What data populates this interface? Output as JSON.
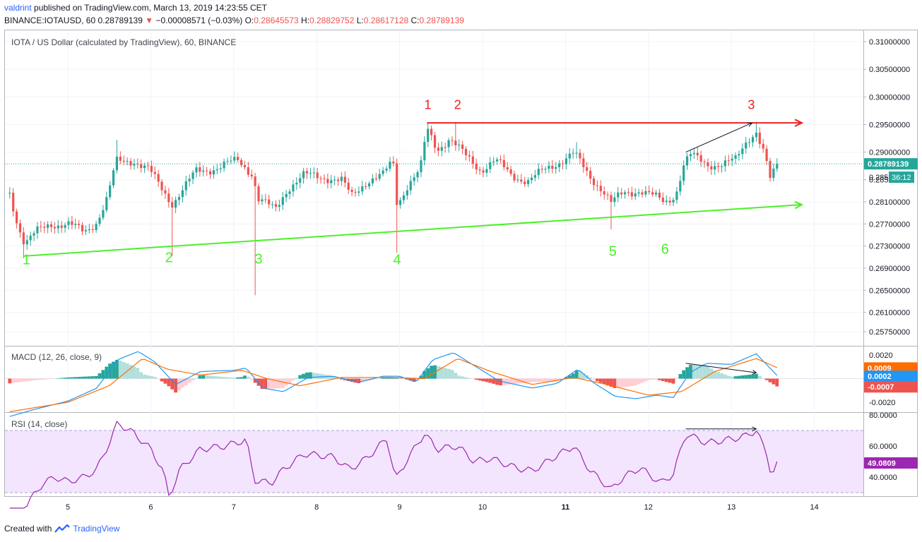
{
  "header": {
    "author": "valdrint",
    "published": "published on TradingView.com, March 13, 2019 14:23:55 CET",
    "symbol": "BINANCE:IOTAUSD, 60",
    "last": "0.28789139",
    "change_arrow": "▼",
    "change": "−0.00008571 (−0.03%)",
    "o_label": "O:",
    "o": "0.28645573",
    "h_label": "H:",
    "h": "0.28829752",
    "l_label": "L:",
    "l": "0.28617128",
    "c_label": "C:",
    "c": "0.28789139"
  },
  "panes": {
    "price_title": "IOTA / US Dollar (calculated by TradingView), 60, BINANCE",
    "macd_title": "MACD (12, 26, close, 9)",
    "rsi_title": "RSI (14, close)"
  },
  "colors": {
    "up": "#26a69a",
    "down": "#ef5350",
    "support": "#4cef2a",
    "resistance": "#ef2020",
    "macd": "#2196f3",
    "signal": "#ff6d00",
    "rsi": "#9c27b0",
    "rsi_band": "#f3e5fd",
    "last_price_bg": "#26a69a",
    "macd_bg": "#2196f3",
    "signal_bg": "#ff6d00",
    "hist_bg": "#ef5350",
    "rsi_bg": "#9c27b0"
  },
  "chart_data": [
    {
      "type": "candlestick",
      "title": "IOTA / US Dollar (calculated by TradingView), 60, BINANCE",
      "x_ticks": [
        "5",
        "6",
        "7",
        "8",
        "9",
        "10",
        "11",
        "12",
        "13",
        "14"
      ],
      "y_ticks": [
        "0.31000000",
        "0.30500000",
        "0.30000000",
        "0.29500000",
        "0.29000000",
        "0.28500000",
        "0.28100000",
        "0.27700000",
        "0.27300000",
        "0.26900000",
        "0.26500000",
        "0.26100000",
        "0.25750000"
      ],
      "last_price_label": "0.28789139",
      "countdown_label": "36:12",
      "countdown_partial_tick": "0.285",
      "anchors": [
        {
          "x": 4.3,
          "y": 0.2825
        },
        {
          "x": 4.38,
          "y": 0.2778
        },
        {
          "x": 4.48,
          "y": 0.2735
        },
        {
          "x": 4.62,
          "y": 0.2755
        },
        {
          "x": 4.8,
          "y": 0.277
        },
        {
          "x": 5.0,
          "y": 0.277
        },
        {
          "x": 5.2,
          "y": 0.2755
        },
        {
          "x": 5.35,
          "y": 0.2775
        },
        {
          "x": 5.48,
          "y": 0.2818
        },
        {
          "x": 5.58,
          "y": 0.2882
        },
        {
          "x": 5.8,
          "y": 0.2885
        },
        {
          "x": 5.98,
          "y": 0.2868
        },
        {
          "x": 6.1,
          "y": 0.284
        },
        {
          "x": 6.22,
          "y": 0.2815
        },
        {
          "x": 6.26,
          "y": 0.2808
        },
        {
          "x": 6.4,
          "y": 0.2835
        },
        {
          "x": 6.55,
          "y": 0.2865
        },
        {
          "x": 6.8,
          "y": 0.2872
        },
        {
          "x": 7.05,
          "y": 0.2885
        },
        {
          "x": 7.22,
          "y": 0.2862
        },
        {
          "x": 7.3,
          "y": 0.2815
        },
        {
          "x": 7.5,
          "y": 0.2795
        },
        {
          "x": 7.65,
          "y": 0.2835
        },
        {
          "x": 7.85,
          "y": 0.2858
        },
        {
          "x": 8.1,
          "y": 0.2855
        },
        {
          "x": 8.3,
          "y": 0.2848
        },
        {
          "x": 8.42,
          "y": 0.282
        },
        {
          "x": 8.6,
          "y": 0.2848
        },
        {
          "x": 8.8,
          "y": 0.2858
        },
        {
          "x": 8.92,
          "y": 0.2885
        },
        {
          "x": 8.97,
          "y": 0.2805
        },
        {
          "x": 9.1,
          "y": 0.2842
        },
        {
          "x": 9.25,
          "y": 0.2868
        },
        {
          "x": 9.33,
          "y": 0.2942
        },
        {
          "x": 9.45,
          "y": 0.2905
        },
        {
          "x": 9.6,
          "y": 0.2925
        },
        {
          "x": 9.78,
          "y": 0.2895
        },
        {
          "x": 9.98,
          "y": 0.2868
        },
        {
          "x": 10.15,
          "y": 0.2885
        },
        {
          "x": 10.35,
          "y": 0.2858
        },
        {
          "x": 10.55,
          "y": 0.2848
        },
        {
          "x": 10.8,
          "y": 0.2872
        },
        {
          "x": 11.1,
          "y": 0.2898
        },
        {
          "x": 11.28,
          "y": 0.2858
        },
        {
          "x": 11.45,
          "y": 0.2832
        },
        {
          "x": 11.55,
          "y": 0.2808
        },
        {
          "x": 11.7,
          "y": 0.2825
        },
        {
          "x": 11.9,
          "y": 0.2832
        },
        {
          "x": 12.08,
          "y": 0.2818
        },
        {
          "x": 12.2,
          "y": 0.2808
        },
        {
          "x": 12.33,
          "y": 0.2825
        },
        {
          "x": 12.42,
          "y": 0.2875
        },
        {
          "x": 12.5,
          "y": 0.2895
        },
        {
          "x": 12.7,
          "y": 0.2878
        },
        {
          "x": 12.9,
          "y": 0.2878
        },
        {
          "x": 13.05,
          "y": 0.2885
        },
        {
          "x": 13.2,
          "y": 0.2925
        },
        {
          "x": 13.3,
          "y": 0.2938
        },
        {
          "x": 13.4,
          "y": 0.2895
        },
        {
          "x": 13.47,
          "y": 0.2848
        },
        {
          "x": 13.56,
          "y": 0.2879
        }
      ],
      "wick_spikes": [
        {
          "x": 4.48,
          "low": 0.2708
        },
        {
          "x": 6.24,
          "low": 0.2712
        },
        {
          "x": 7.25,
          "low": 0.2641
        },
        {
          "x": 8.95,
          "low": 0.2718
        },
        {
          "x": 11.55,
          "low": 0.276
        },
        {
          "x": 9.34,
          "high": 0.2952
        },
        {
          "x": 9.68,
          "high": 0.2955
        },
        {
          "x": 13.3,
          "high": 0.2955
        },
        {
          "x": 11.15,
          "high": 0.2918
        },
        {
          "x": 5.6,
          "high": 0.2922
        }
      ],
      "trendlines": [
        {
          "name": "support",
          "x": [
            4.48,
            13.85
          ],
          "y": [
            0.2712,
            0.2805
          ]
        },
        {
          "name": "resistance",
          "x": [
            9.33,
            13.85
          ],
          "y": [
            0.2953,
            0.2953
          ]
        },
        {
          "name": "rising-arrow",
          "x": [
            12.45,
            13.25
          ],
          "y": [
            0.29,
            0.2953
          ]
        }
      ],
      "support_labels": [
        {
          "text": "1",
          "x": 4.5,
          "y": 0.2697
        },
        {
          "text": "2",
          "x": 6.22,
          "y": 0.2701
        },
        {
          "text": "3",
          "x": 7.3,
          "y": 0.2698
        },
        {
          "text": "4",
          "x": 8.97,
          "y": 0.2697
        },
        {
          "text": "5",
          "x": 11.57,
          "y": 0.2712
        },
        {
          "text": "6",
          "x": 12.2,
          "y": 0.2716
        }
      ],
      "resistance_labels": [
        {
          "text": "1",
          "x": 9.34,
          "y": 0.2978
        },
        {
          "text": "2",
          "x": 9.7,
          "y": 0.2978
        },
        {
          "text": "3",
          "x": 13.24,
          "y": 0.2978
        }
      ]
    },
    {
      "type": "line",
      "title": "MACD (12, 26, close, 9)",
      "y_ticks": [
        "0.0020",
        "-0.0020"
      ],
      "labels": {
        "signal": "0.0009",
        "macd": "0.0002",
        "hist": "-0.0007"
      },
      "macd_anchors": [
        {
          "x": 4.3,
          "y": -0.0032
        },
        {
          "x": 4.6,
          "y": -0.0026
        },
        {
          "x": 5.0,
          "y": -0.0019
        },
        {
          "x": 5.35,
          "y": -0.0008
        },
        {
          "x": 5.6,
          "y": 0.0016
        },
        {
          "x": 5.85,
          "y": 0.0023
        },
        {
          "x": 6.05,
          "y": 0.0014
        },
        {
          "x": 6.3,
          "y": -0.0005
        },
        {
          "x": 6.6,
          "y": 0.0006
        },
        {
          "x": 7.0,
          "y": 0.0007
        },
        {
          "x": 7.15,
          "y": 0.0009
        },
        {
          "x": 7.35,
          "y": -0.0008
        },
        {
          "x": 7.6,
          "y": -0.0011
        },
        {
          "x": 7.9,
          "y": 0.0001
        },
        {
          "x": 8.2,
          "y": 0.0002
        },
        {
          "x": 8.5,
          "y": -0.0003
        },
        {
          "x": 8.8,
          "y": 0.0002
        },
        {
          "x": 9.0,
          "y": 0.0002
        },
        {
          "x": 9.2,
          "y": -0.0003
        },
        {
          "x": 9.4,
          "y": 0.0016
        },
        {
          "x": 9.65,
          "y": 0.0022
        },
        {
          "x": 9.9,
          "y": 0.0011
        },
        {
          "x": 10.2,
          "y": -0.0002
        },
        {
          "x": 10.6,
          "y": -0.0008
        },
        {
          "x": 10.9,
          "y": -0.0004
        },
        {
          "x": 11.15,
          "y": 0.0008
        },
        {
          "x": 11.35,
          "y": -0.0004
        },
        {
          "x": 11.6,
          "y": -0.0015
        },
        {
          "x": 11.85,
          "y": -0.0017
        },
        {
          "x": 12.1,
          "y": -0.0014
        },
        {
          "x": 12.3,
          "y": -0.0016
        },
        {
          "x": 12.5,
          "y": 0.0005
        },
        {
          "x": 12.7,
          "y": 0.0013
        },
        {
          "x": 13.0,
          "y": 0.0012
        },
        {
          "x": 13.3,
          "y": 0.0021
        },
        {
          "x": 13.56,
          "y": 0.0002
        }
      ],
      "signal_anchors": [
        {
          "x": 4.3,
          "y": -0.0028
        },
        {
          "x": 5.0,
          "y": -0.002
        },
        {
          "x": 5.5,
          "y": -0.0006
        },
        {
          "x": 5.9,
          "y": 0.0017
        },
        {
          "x": 6.2,
          "y": 0.0008
        },
        {
          "x": 6.6,
          "y": 0.0003
        },
        {
          "x": 7.1,
          "y": 0.0007
        },
        {
          "x": 7.4,
          "y": 0.0
        },
        {
          "x": 7.8,
          "y": -0.0006
        },
        {
          "x": 8.3,
          "y": 0.0001
        },
        {
          "x": 8.9,
          "y": 0.0001
        },
        {
          "x": 9.3,
          "y": 0.0
        },
        {
          "x": 9.7,
          "y": 0.0017
        },
        {
          "x": 10.1,
          "y": 0.0006
        },
        {
          "x": 10.6,
          "y": -0.0005
        },
        {
          "x": 11.1,
          "y": 0.0001
        },
        {
          "x": 11.5,
          "y": -0.0005
        },
        {
          "x": 12.0,
          "y": -0.0014
        },
        {
          "x": 12.4,
          "y": -0.0011
        },
        {
          "x": 12.8,
          "y": 0.0006
        },
        {
          "x": 13.3,
          "y": 0.0017
        },
        {
          "x": 13.56,
          "y": 0.0009
        }
      ],
      "arrow": {
        "x": [
          12.45,
          13.3
        ],
        "y": [
          0.0013,
          0.0005
        ]
      }
    },
    {
      "type": "line",
      "title": "RSI (14, close)",
      "y_ticks": [
        "80.0000",
        "60.0000",
        "40.0000"
      ],
      "label": "49.0809",
      "band": [
        30,
        70
      ],
      "anchors": [
        {
          "x": 4.3,
          "y": 10
        },
        {
          "x": 4.5,
          "y": 22
        },
        {
          "x": 4.7,
          "y": 36
        },
        {
          "x": 4.85,
          "y": 40
        },
        {
          "x": 5.0,
          "y": 37
        },
        {
          "x": 5.2,
          "y": 40
        },
        {
          "x": 5.35,
          "y": 45
        },
        {
          "x": 5.5,
          "y": 62
        },
        {
          "x": 5.6,
          "y": 75
        },
        {
          "x": 5.8,
          "y": 68
        },
        {
          "x": 6.0,
          "y": 58
        },
        {
          "x": 6.15,
          "y": 44
        },
        {
          "x": 6.22,
          "y": 27
        },
        {
          "x": 6.35,
          "y": 45
        },
        {
          "x": 6.6,
          "y": 58
        },
        {
          "x": 6.9,
          "y": 60
        },
        {
          "x": 7.15,
          "y": 64
        },
        {
          "x": 7.25,
          "y": 38
        },
        {
          "x": 7.45,
          "y": 36
        },
        {
          "x": 7.6,
          "y": 45
        },
        {
          "x": 7.85,
          "y": 55
        },
        {
          "x": 8.2,
          "y": 53
        },
        {
          "x": 8.4,
          "y": 45
        },
        {
          "x": 8.6,
          "y": 52
        },
        {
          "x": 8.85,
          "y": 65
        },
        {
          "x": 8.95,
          "y": 38
        },
        {
          "x": 9.1,
          "y": 52
        },
        {
          "x": 9.3,
          "y": 68
        },
        {
          "x": 9.45,
          "y": 58
        },
        {
          "x": 9.7,
          "y": 60
        },
        {
          "x": 9.9,
          "y": 50
        },
        {
          "x": 10.1,
          "y": 52
        },
        {
          "x": 10.4,
          "y": 46
        },
        {
          "x": 10.6,
          "y": 44
        },
        {
          "x": 10.9,
          "y": 54
        },
        {
          "x": 11.1,
          "y": 60
        },
        {
          "x": 11.3,
          "y": 44
        },
        {
          "x": 11.55,
          "y": 32
        },
        {
          "x": 11.7,
          "y": 40
        },
        {
          "x": 11.9,
          "y": 46
        },
        {
          "x": 12.15,
          "y": 36
        },
        {
          "x": 12.3,
          "y": 42
        },
        {
          "x": 12.45,
          "y": 68
        },
        {
          "x": 12.7,
          "y": 62
        },
        {
          "x": 12.95,
          "y": 64
        },
        {
          "x": 13.15,
          "y": 66
        },
        {
          "x": 13.3,
          "y": 70
        },
        {
          "x": 13.45,
          "y": 52
        },
        {
          "x": 13.48,
          "y": 40
        },
        {
          "x": 13.56,
          "y": 49
        }
      ],
      "arrow": {
        "x": [
          12.45,
          13.3
        ],
        "y": [
          71,
          71
        ]
      }
    }
  ],
  "footer": {
    "created_with": "Created with",
    "brand": "TradingView"
  }
}
